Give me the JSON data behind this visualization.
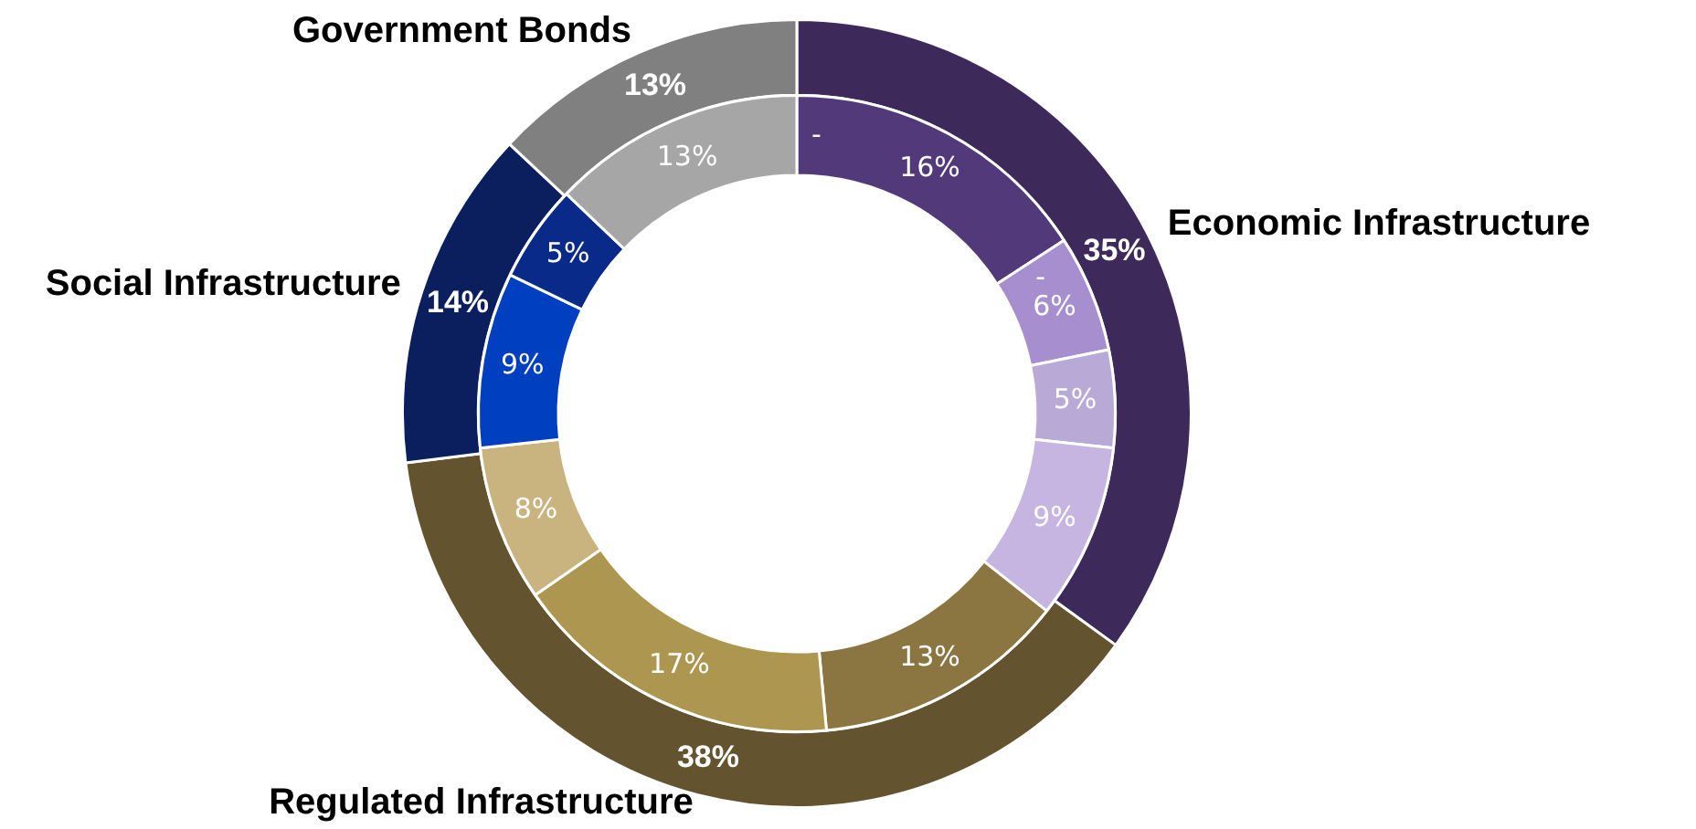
{
  "chart_data": [
    {
      "type": "donut",
      "categories": [
        "Economic Infrastructure",
        "Regulated Infrastructure",
        "Social Infrastructure",
        "Government Bonds"
      ],
      "values": [
        35,
        38,
        14,
        13
      ],
      "colors": [
        "#3e2a5a",
        "#63532f",
        "#0b1f5e",
        "#808080"
      ],
      "value_labels": [
        "35%",
        "38%",
        "14%",
        "13%"
      ]
    },
    {
      "type": "donut",
      "categories": [
        null,
        null,
        null,
        null,
        null,
        null,
        null,
        null,
        null,
        null,
        null,
        null
      ],
      "values": [
        0,
        16,
        0,
        6,
        5,
        9,
        13,
        17,
        8,
        9,
        5,
        13
      ],
      "colors": [
        "#523a7a",
        "#523a7a",
        "#a78fcf",
        "#a78fcf",
        "#b9a9d6",
        "#c6b5e0",
        "#8b7540",
        "#ad9750",
        "#c9b47f",
        "#0040c0",
        "#0a2a8a",
        "#a6a6a6"
      ],
      "value_labels": [
        "-",
        "16%",
        "-",
        "6%",
        "5%",
        "9%",
        "13%",
        "17%",
        "8%",
        "9%",
        "5%",
        "13%"
      ]
    }
  ]
}
